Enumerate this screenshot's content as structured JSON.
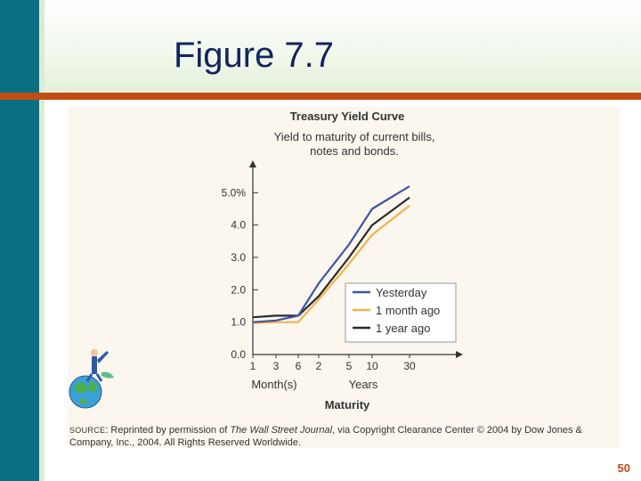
{
  "slide": {
    "title": "Figure 7.7",
    "page_number": "50"
  },
  "colors": {
    "sidebar": "#0b6f84",
    "rule": "#c14d13",
    "title_text": "#13245e",
    "yesterday": "#3f55a8",
    "month_ago": "#f5b14a",
    "year_ago": "#2b2b2b"
  },
  "icons": {
    "clipart": "globe-person-icon"
  },
  "source": {
    "label": "Source",
    "text_before": ": Reprinted by permission of ",
    "journal": "The Wall Street Journal",
    "text_after": ", via Copyright Clearance Center © 2004 by Dow Jones & Company, Inc., 2004. All Rights Reserved Worldwide."
  },
  "chart_data": {
    "type": "line",
    "title": "Treasury Yield Curve",
    "subtitle_lines": [
      "Yield to maturity of current bills,",
      "notes and bonds."
    ],
    "xlabel": "Maturity",
    "x_group_labels": [
      "Month(s)",
      "Years"
    ],
    "categories": [
      "1",
      "3",
      "6",
      "2",
      "5",
      "10",
      "30"
    ],
    "y_ticks": [
      "0.0",
      "1.0",
      "2.0",
      "3.0",
      "4.0",
      "5.0%"
    ],
    "y_tick_values": [
      0,
      1,
      2,
      3,
      4,
      5
    ],
    "ylim": [
      0,
      6
    ],
    "grid": false,
    "legend_position": "bottom-right",
    "series": [
      {
        "name": "Yesterday",
        "color": "#3f55a8",
        "values": [
          1.0,
          1.05,
          1.2,
          2.2,
          3.4,
          4.5,
          5.2
        ]
      },
      {
        "name": "1 month ago",
        "color": "#f5b14a",
        "values": [
          0.97,
          1.0,
          1.0,
          1.7,
          2.8,
          3.7,
          4.6
        ]
      },
      {
        "name": "1 year ago",
        "color": "#2b2b2b",
        "values": [
          1.15,
          1.2,
          1.2,
          1.8,
          3.0,
          4.0,
          4.85
        ]
      }
    ]
  }
}
